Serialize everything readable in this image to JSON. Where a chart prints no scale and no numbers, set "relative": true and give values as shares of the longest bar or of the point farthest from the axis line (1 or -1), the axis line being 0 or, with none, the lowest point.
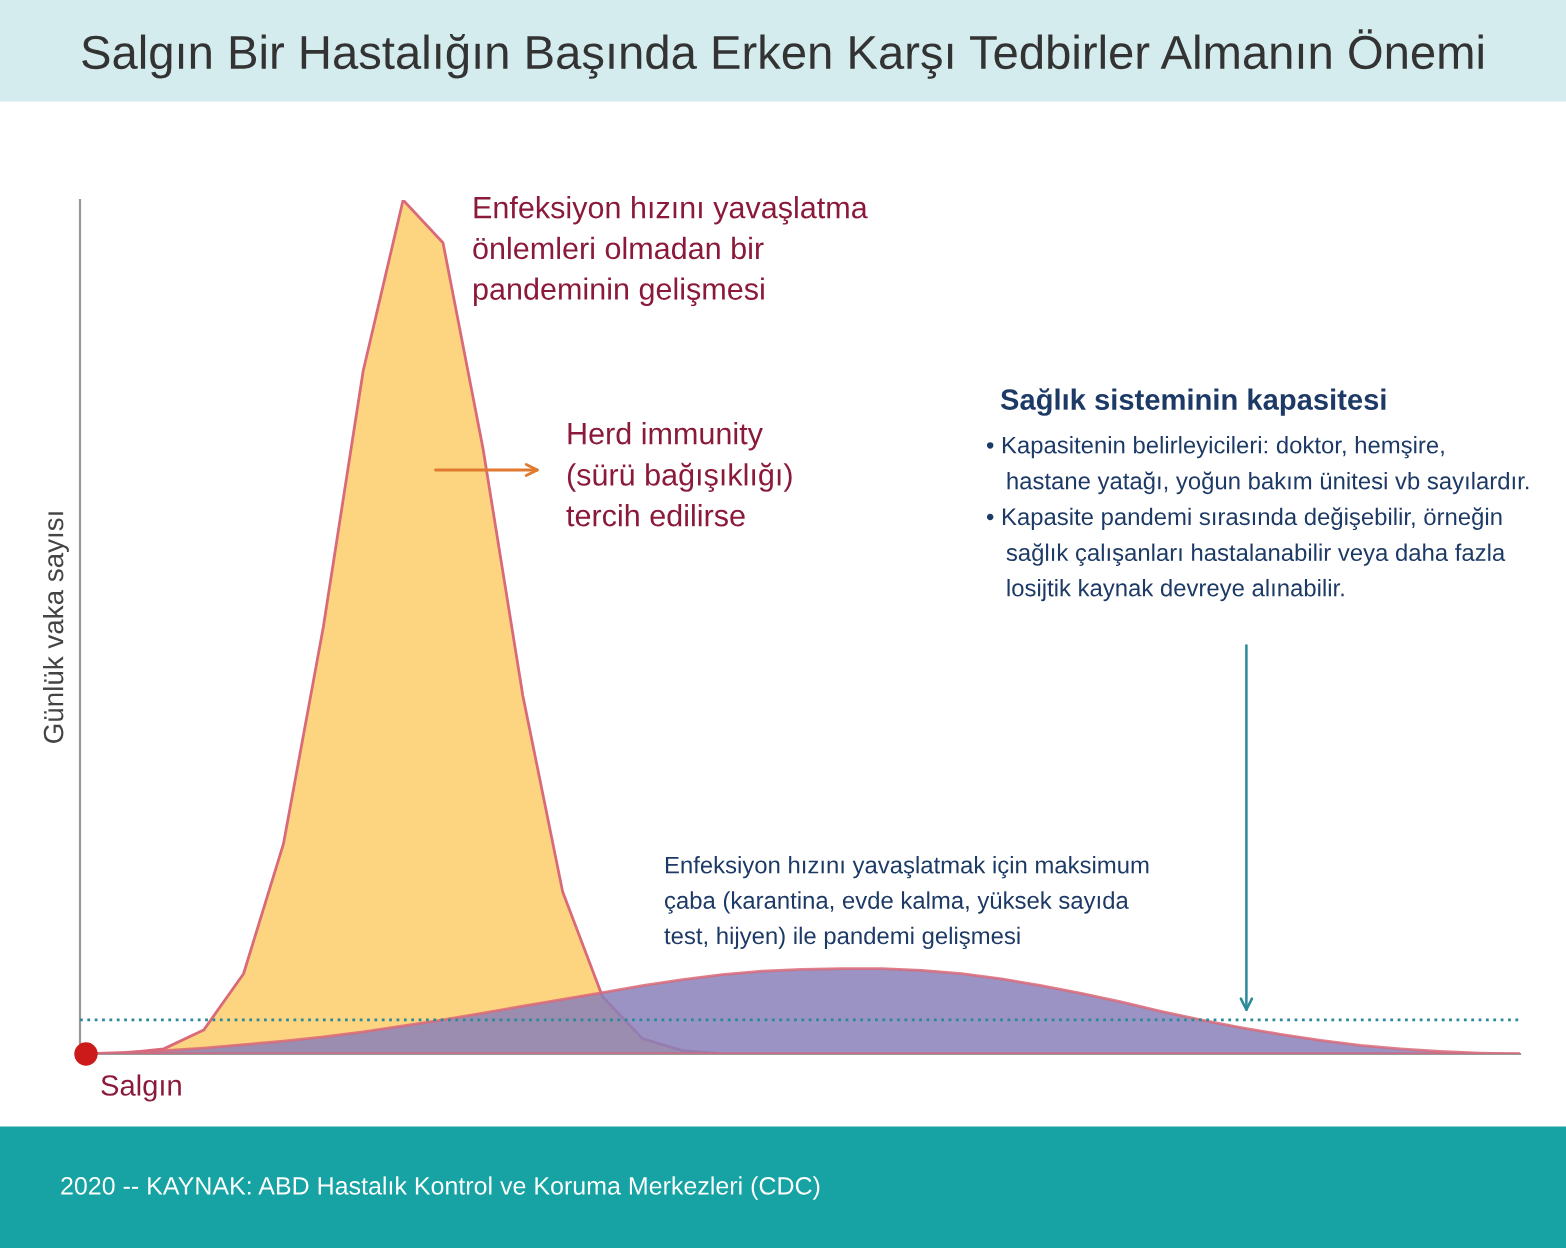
{
  "chart_data": {
    "type": "area",
    "relative": true,
    "title": "Salgın Bir Hastalığın Başında Erken Karşı Tedbirler Almanın Önemi",
    "ylabel": "Günlük vaka sayısı",
    "categories": [
      null,
      null,
      null,
      null,
      null,
      null,
      null,
      null,
      null,
      null,
      null,
      null,
      null,
      null,
      null,
      null,
      null,
      null,
      null,
      null,
      null,
      null,
      null,
      null,
      null,
      null,
      null,
      null,
      null,
      null,
      null,
      null,
      null,
      null,
      null,
      null,
      null
    ],
    "series": [
      {
        "color": "#fdd47f",
        "values": [
          0,
          0.001,
          0.006,
          0.028,
          0.094,
          0.246,
          0.5,
          0.8,
          1,
          0.95,
          0.71,
          0.42,
          0.19,
          0.067,
          0.018,
          0.004,
          0,
          0,
          0,
          0,
          0,
          0,
          0,
          0,
          0,
          0,
          0,
          0,
          0,
          0,
          0,
          0,
          0,
          0,
          0,
          0,
          0
        ]
      },
      {
        "color": "#8a80b8",
        "values": [
          0,
          0.002,
          0.004,
          0.007,
          0.011,
          0.015,
          0.02,
          0.026,
          0.033,
          0.04,
          0.048,
          0.056,
          0.064,
          0.072,
          0.08,
          0.087,
          0.093,
          0.097,
          0.099,
          0.1,
          0.1,
          0.098,
          0.094,
          0.088,
          0.08,
          0.071,
          0.061,
          0.05,
          0.04,
          0.031,
          0.023,
          0.016,
          0.01,
          0.006,
          0.003,
          0.001,
          0
        ]
      }
    ],
    "ref_lines": [
      {
        "axis": "y",
        "value": 0.04,
        "color": "#2a8a9a",
        "line_style": "dotted"
      }
    ],
    "annotations": [
      "Sağlık sisteminin kapasitesi",
      "Enfeksiyon hızını yavaşlatma\nönlemleri olmadan bir\npandeminin gelişmesi",
      "Herd immunity\n(sürü bağışıklığı)\ntercih edilirse",
      "• Kapasitenin belirleyicileri: doktor, hemşire,\n   hastane yatağı, yoğun bakım ünitesi vb sayılardır.\n• Kapasite pandemi sırasında değişebilir, örneğin\n   sağlık çalışanları hastalanabilir veya daha fazla\n   losijtik kaynak devreye alınabilir.",
      "Enfeksiyon hızını yavaşlatmak için maksimum\nçaba (karantina, evde kalma, yüksek sayıda\ntest, hijyen) ile pandemi gelişmesi",
      "Salgın",
      "2020 -- KAYNAK: ABD Hastalık Kontrol ve Koruma Merkezleri (CDC)"
    ]
  }
}
